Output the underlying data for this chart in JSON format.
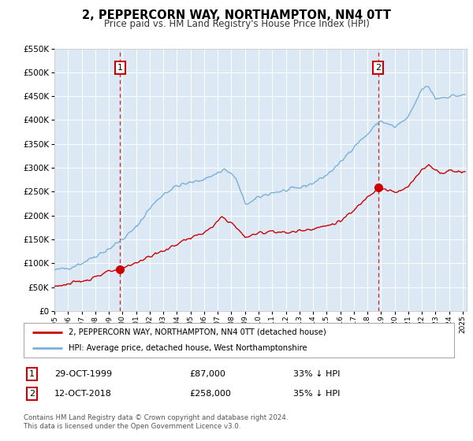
{
  "title": "2, PEPPERCORN WAY, NORTHAMPTON, NN4 0TT",
  "subtitle": "Price paid vs. HM Land Registry's House Price Index (HPI)",
  "bg_color": "#dce9f5",
  "fig_bg_color": "#ffffff",
  "hpi_color": "#7ab0d8",
  "price_color": "#cc0000",
  "vline_color": "#cc0000",
  "sale1_date_x": 1999.83,
  "sale1_price": 87000,
  "sale2_date_x": 2018.78,
  "sale2_price": 258000,
  "ylim": [
    0,
    550000
  ],
  "xlim": [
    1995.0,
    2025.3
  ],
  "yticks": [
    0,
    50000,
    100000,
    150000,
    200000,
    250000,
    300000,
    350000,
    400000,
    450000,
    500000,
    550000
  ],
  "legend_line1": "2, PEPPERCORN WAY, NORTHAMPTON, NN4 0TT (detached house)",
  "legend_line2": "HPI: Average price, detached house, West Northamptonshire",
  "table_row1_date": "29-OCT-1999",
  "table_row1_price": "£87,000",
  "table_row1_pct": "33% ↓ HPI",
  "table_row2_date": "12-OCT-2018",
  "table_row2_price": "£258,000",
  "table_row2_pct": "35% ↓ HPI",
  "footnote": "Contains HM Land Registry data © Crown copyright and database right 2024.\nThis data is licensed under the Open Government Licence v3.0."
}
